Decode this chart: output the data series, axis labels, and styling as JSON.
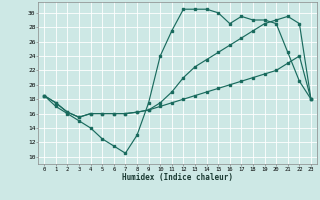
{
  "bg_color": "#cde8e5",
  "line_color": "#1a6b5e",
  "grid_color": "#ffffff",
  "xlabel": "Humidex (Indice chaleur)",
  "xlim": [
    -0.5,
    23.5
  ],
  "ylim": [
    9,
    31.5
  ],
  "xticks": [
    0,
    1,
    2,
    3,
    4,
    5,
    6,
    7,
    8,
    9,
    10,
    11,
    12,
    13,
    14,
    15,
    16,
    17,
    18,
    19,
    20,
    21,
    22,
    23
  ],
  "yticks": [
    10,
    12,
    14,
    16,
    18,
    20,
    22,
    24,
    26,
    28,
    30
  ],
  "series1_x": [
    0,
    1,
    2,
    3,
    4,
    5,
    6,
    7,
    8,
    9,
    10,
    11,
    12,
    13,
    14,
    15,
    16,
    17,
    18,
    19,
    20,
    21,
    22,
    23
  ],
  "series1_y": [
    18.5,
    17,
    16,
    15,
    14,
    12.5,
    11.5,
    10.5,
    13,
    17.5,
    24,
    27.5,
    30.5,
    30.5,
    30.5,
    30,
    28.5,
    29.5,
    29,
    29,
    28.5,
    24.5,
    20.5,
    18
  ],
  "series2_x": [
    0,
    1,
    2,
    3,
    4,
    5,
    6,
    7,
    8,
    9,
    10,
    11,
    12,
    13,
    14,
    15,
    16,
    17,
    18,
    19,
    20,
    21,
    22,
    23
  ],
  "series2_y": [
    18.5,
    17.5,
    16.2,
    15.5,
    16.0,
    16.0,
    16.0,
    16.0,
    16.2,
    16.5,
    17.0,
    17.5,
    18.0,
    18.5,
    19.0,
    19.5,
    20.0,
    20.5,
    21.0,
    21.5,
    22.0,
    23.0,
    24.0,
    18.0
  ],
  "series3_x": [
    0,
    1,
    2,
    3,
    4,
    5,
    6,
    7,
    8,
    9,
    10,
    11,
    12,
    13,
    14,
    15,
    16,
    17,
    18,
    19,
    20,
    21,
    22,
    23
  ],
  "series3_y": [
    18.5,
    17.5,
    16.2,
    15.5,
    16.0,
    16.0,
    16.0,
    16.0,
    16.2,
    16.5,
    17.5,
    19.0,
    21.0,
    22.5,
    23.5,
    24.5,
    25.5,
    26.5,
    27.5,
    28.5,
    29.0,
    29.5,
    28.5,
    18.0
  ]
}
